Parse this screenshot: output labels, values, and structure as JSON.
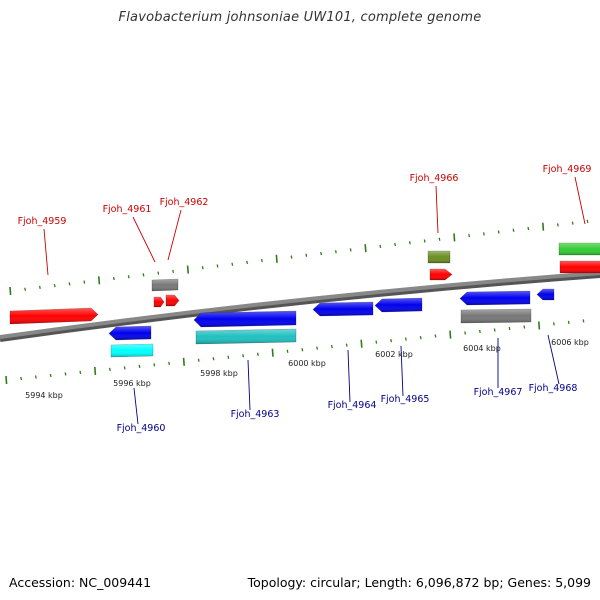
{
  "title": "Flavobacterium johnsoniae UW101, complete genome",
  "footer": {
    "accession": "Accession: NC_009441",
    "summary": "Topology: circular; Length: 6,096,872 bp; Genes: 5,099"
  },
  "colors": {
    "forward_label": "#cc0000",
    "reverse_label": "#00008b",
    "backbone": "#888888",
    "tick": "#2e7d1a"
  },
  "kbp_labels": [
    "5994 kbp",
    "5996 kbp",
    "5998 kbp",
    "6000 kbp",
    "6002 kbp",
    "6004 kbp",
    "6006 kbp"
  ],
  "gene_labels": [
    {
      "text": "Fjoh_4959",
      "strand": "forward"
    },
    {
      "text": "Fjoh_4961",
      "strand": "forward"
    },
    {
      "text": "Fjoh_4962",
      "strand": "forward"
    },
    {
      "text": "Fjoh_4966",
      "strand": "forward"
    },
    {
      "text": "Fjoh_4969",
      "strand": "forward"
    },
    {
      "text": "Fjoh_4960",
      "strand": "reverse"
    },
    {
      "text": "Fjoh_4963",
      "strand": "reverse"
    },
    {
      "text": "Fjoh_4964",
      "strand": "reverse"
    },
    {
      "text": "Fjoh_4965",
      "strand": "reverse"
    },
    {
      "text": "Fjoh_4967",
      "strand": "reverse"
    },
    {
      "text": "Fjoh_4968",
      "strand": "reverse"
    }
  ],
  "features": [
    {
      "name": "feature-forward-red-1",
      "color": "#ff0000",
      "strand": "forward"
    },
    {
      "name": "feature-forward-gray-1",
      "color": "#777777",
      "strand": "forward"
    },
    {
      "name": "feature-forward-red-2",
      "color": "#ff0000",
      "strand": "forward"
    },
    {
      "name": "feature-forward-red-3",
      "color": "#ff0000",
      "strand": "forward"
    },
    {
      "name": "feature-forward-olive",
      "color": "#6b8e23",
      "strand": "forward"
    },
    {
      "name": "feature-forward-red-4",
      "color": "#ff0000",
      "strand": "forward"
    },
    {
      "name": "feature-forward-green",
      "color": "#33cc33",
      "strand": "forward"
    },
    {
      "name": "feature-forward-red-5",
      "color": "#ff0000",
      "strand": "forward"
    },
    {
      "name": "feature-reverse-blue-1",
      "color": "#0000ee",
      "strand": "reverse"
    },
    {
      "name": "feature-reverse-cyan-1",
      "color": "#00ffff",
      "strand": "reverse"
    },
    {
      "name": "feature-reverse-blue-2",
      "color": "#0000ee",
      "strand": "reverse"
    },
    {
      "name": "feature-reverse-cyan-2",
      "color": "#20c0c0",
      "strand": "reverse"
    },
    {
      "name": "feature-reverse-blue-3",
      "color": "#0000ee",
      "strand": "reverse"
    },
    {
      "name": "feature-reverse-blue-4",
      "color": "#0000ee",
      "strand": "reverse"
    },
    {
      "name": "feature-reverse-blue-5",
      "color": "#0000ee",
      "strand": "reverse"
    },
    {
      "name": "feature-reverse-gray",
      "color": "#777777",
      "strand": "reverse"
    },
    {
      "name": "feature-reverse-blue-6",
      "color": "#0000ee",
      "strand": "reverse"
    }
  ]
}
